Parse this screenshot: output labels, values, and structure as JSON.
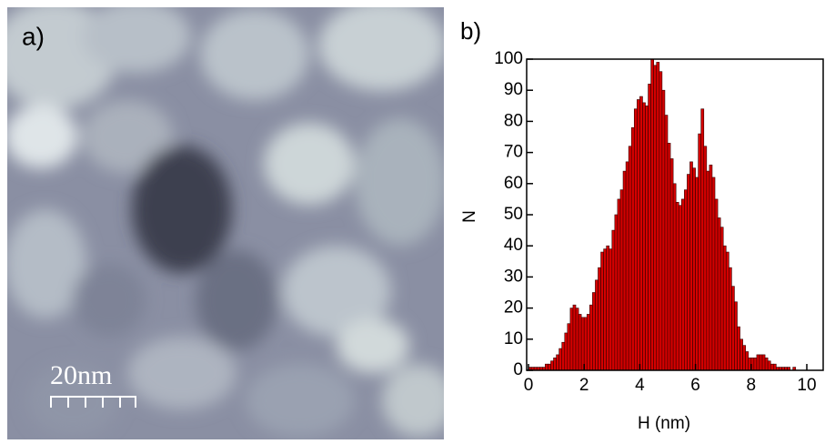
{
  "chart_data": {
    "type": "histogram",
    "panel_labels": [
      "a)",
      "b)"
    ],
    "scale_bar_label": "20nm",
    "x_label": "H (nm)",
    "y_label": "N",
    "bins": [
      0,
      0.1,
      0.2,
      0.3,
      0.4,
      0.5,
      0.6,
      0.7,
      0.8,
      0.9,
      1,
      1.1,
      1.2,
      1.3,
      1.4,
      1.5,
      1.6,
      1.7,
      1.8,
      1.9,
      2,
      2.1,
      2.2,
      2.3,
      2.4,
      2.5,
      2.6,
      2.7,
      2.8,
      2.9,
      3,
      3.1,
      3.2,
      3.3,
      3.4,
      3.5,
      3.6,
      3.7,
      3.8,
      3.9,
      4,
      4.1,
      4.2,
      4.3,
      4.4,
      4.5,
      4.6,
      4.7,
      4.8,
      4.9,
      5,
      5.1,
      5.2,
      5.3,
      5.4,
      5.5,
      5.6,
      5.7,
      5.8,
      5.9,
      6,
      6.1,
      6.2,
      6.3,
      6.4,
      6.5,
      6.6,
      6.7,
      6.8,
      6.9,
      7,
      7.1,
      7.2,
      7.3,
      7.4,
      7.5,
      7.6,
      7.7,
      7.8,
      7.9,
      8,
      8.1,
      8.2,
      8.3,
      8.4,
      8.5,
      8.6,
      8.7,
      8.8,
      8.9,
      9,
      9.1,
      9.2,
      9.3,
      9.4,
      9.5,
      9.6
    ],
    "values": [
      1,
      1,
      1,
      1,
      1,
      1,
      2,
      2,
      3,
      4,
      5,
      7,
      9,
      12,
      15,
      20,
      21,
      20,
      18,
      17,
      17,
      18,
      21,
      25,
      29,
      33,
      38,
      39,
      40,
      39,
      45,
      50,
      55,
      58,
      64,
      67,
      72,
      78,
      84,
      87,
      88,
      86,
      85,
      92,
      100,
      98,
      99,
      96,
      90,
      82,
      73,
      68,
      60,
      54,
      53,
      55,
      58,
      63,
      67,
      65,
      62,
      76,
      84,
      72,
      64,
      66,
      62,
      55,
      49,
      46,
      40,
      38,
      33,
      27,
      22,
      14,
      10,
      8,
      6,
      4,
      4,
      4,
      5,
      5,
      5,
      4,
      3,
      2,
      2,
      1,
      1,
      1,
      1,
      1,
      0,
      1
    ],
    "color": "#d40000",
    "xlim": [
      0,
      10
    ],
    "xticks": [
      0,
      2,
      4,
      6,
      8,
      10
    ],
    "ylim": [
      0,
      100
    ],
    "yticks": [
      0,
      10,
      20,
      30,
      40,
      50,
      60,
      70,
      80,
      90,
      100
    ]
  }
}
